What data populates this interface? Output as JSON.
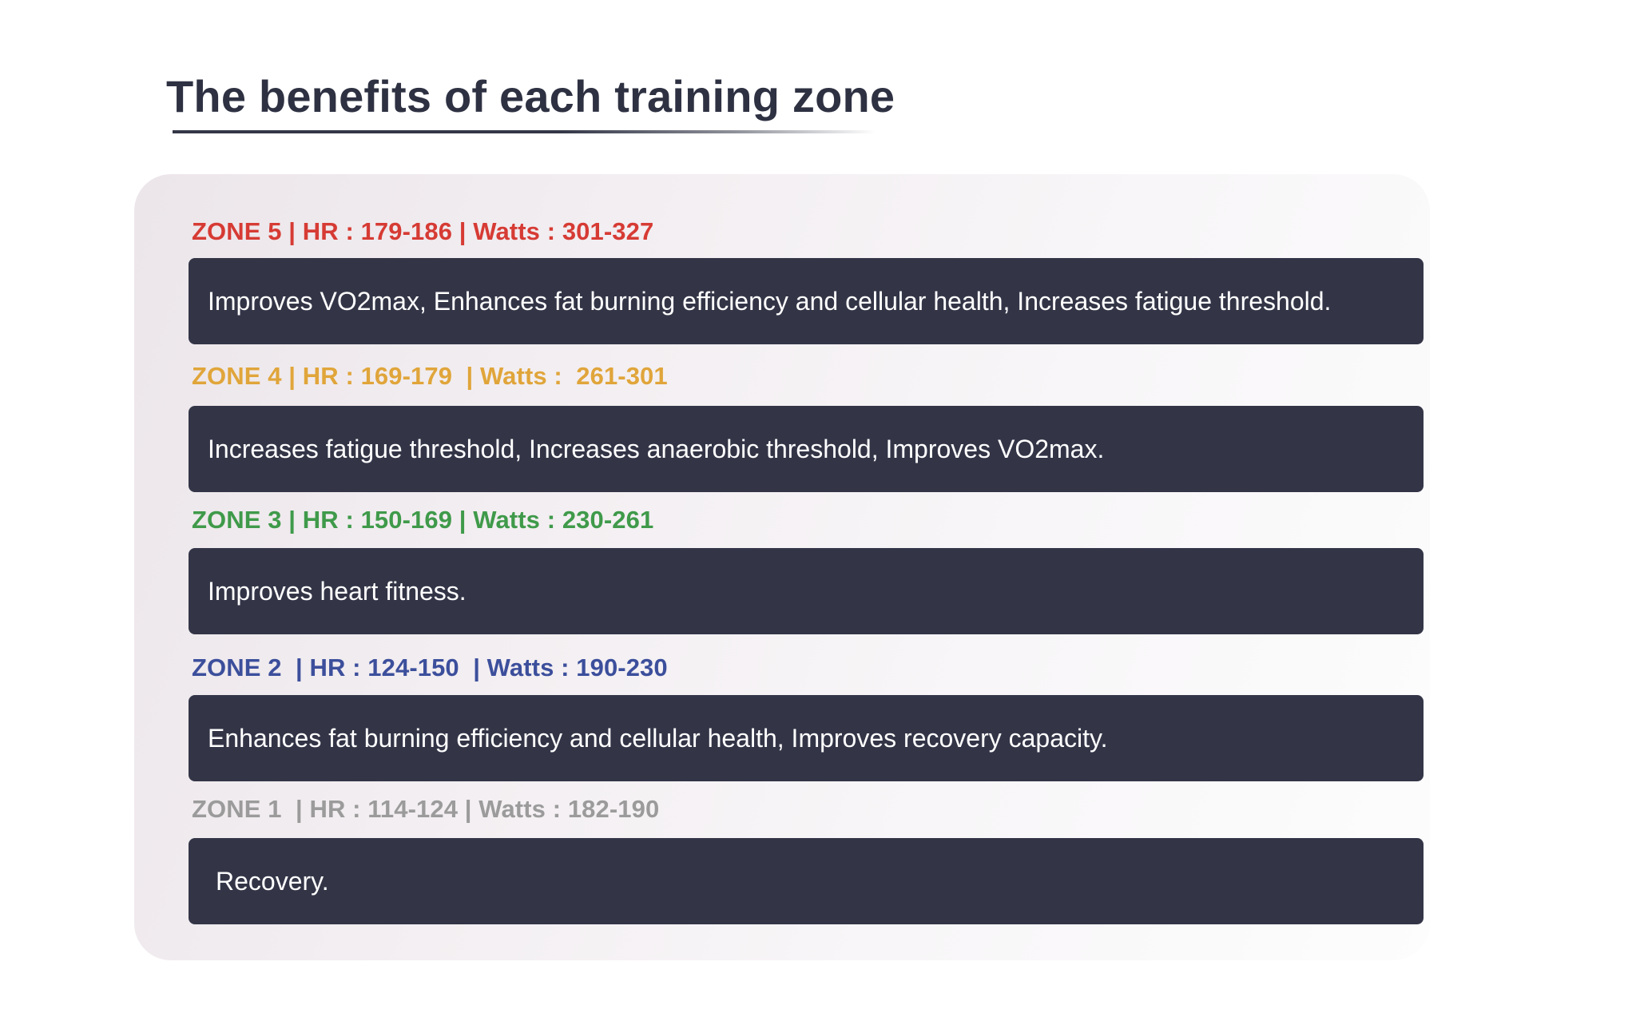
{
  "page": {
    "title": "The benefits of each training zone"
  },
  "colors": {
    "title": "#2e3142",
    "box_background": "#333547",
    "zone5": "#d63b34",
    "zone4": "#e0a53a",
    "zone3": "#3f9a4a",
    "zone2": "#3c4f9c",
    "zone1": "#9b9b9b"
  },
  "zones": [
    {
      "header": "ZONE 5 | HR : 179-186 | Watts : 301-327",
      "benefits": "Improves VO2max, Enhances fat burning efficiency and cellular health, Increases fatigue threshold."
    },
    {
      "header": "ZONE 4 | HR : 169-179  | Watts :  261-301",
      "benefits": "Increases fatigue threshold, Increases anaerobic threshold, Improves VO2max."
    },
    {
      "header": "ZONE 3 | HR : 150-169 | Watts : 230-261",
      "benefits": "Improves heart fitness."
    },
    {
      "header": "ZONE 2  | HR : 124-150  | Watts : 190-230",
      "benefits": "Enhances fat burning efficiency and cellular health, Improves recovery capacity."
    },
    {
      "header": "ZONE 1  | HR : 114-124 | Watts : 182-190",
      "benefits": "Recovery."
    }
  ]
}
